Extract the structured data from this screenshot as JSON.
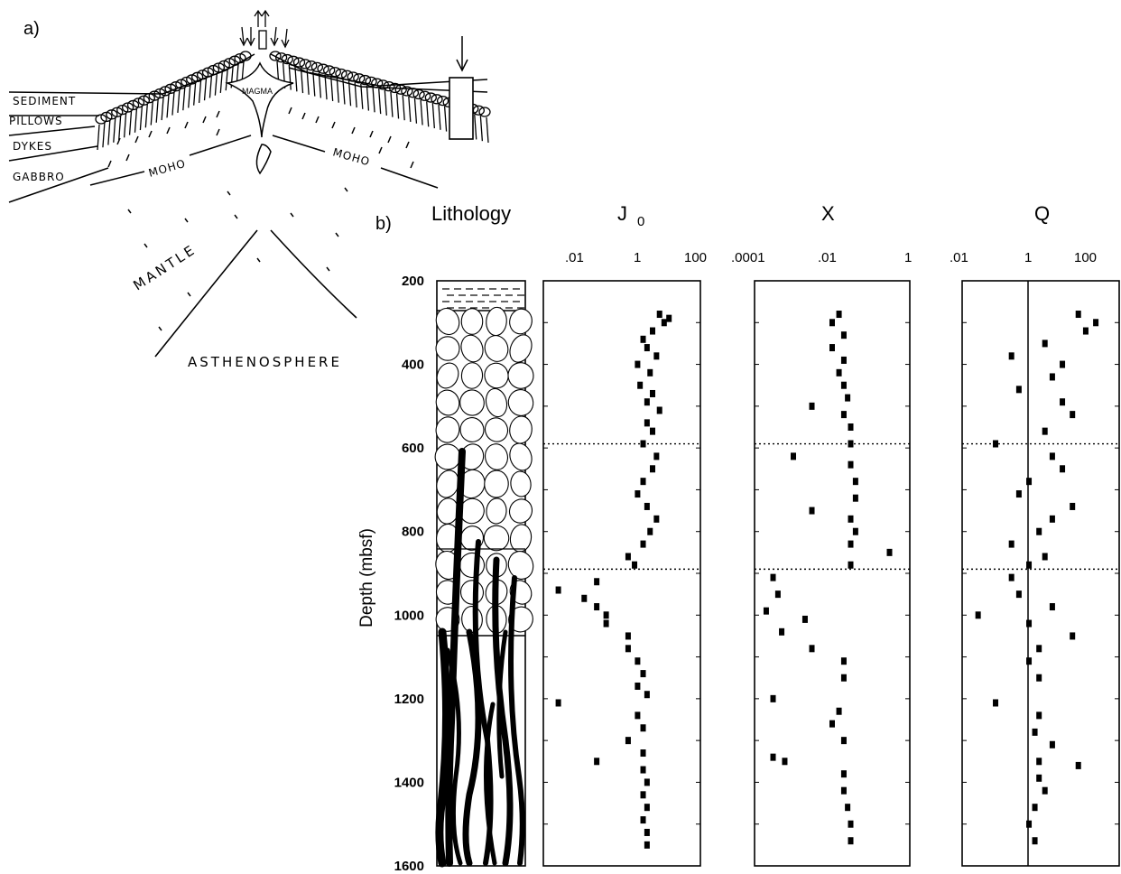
{
  "panel_a": {
    "label": "a)",
    "labels": {
      "sediment": "SEDIMENT",
      "pillows": "PILLOWS",
      "dykes": "DYKES",
      "gabbro": "GABBRO",
      "moho": "MOHO",
      "magma": "MAGMA",
      "mantle": "MANTLE",
      "asthenosphere": "ASTHENOSPHERE"
    }
  },
  "panel_b": {
    "label": "b)",
    "y_axis_label": "Depth (mbsf)",
    "depth_ticks": [
      "200",
      "400",
      "600",
      "800",
      "1000",
      "1200",
      "1400",
      "1600"
    ],
    "columns": {
      "lithology": "Lithology",
      "j0": {
        "title": "J",
        "subscript": "0",
        "ticks": [
          ".01",
          "1",
          "100"
        ]
      },
      "x": {
        "title": "X",
        "ticks": [
          ".0001",
          ".01",
          "1"
        ]
      },
      "q": {
        "title": "Q",
        "ticks": [
          ".01",
          "1",
          "100"
        ]
      }
    },
    "boundaries_depth": [
      590,
      890
    ]
  },
  "chart_data": [
    {
      "type": "scatter",
      "title": "J 0",
      "ylabel": "Depth (mbsf)",
      "xscale": "log",
      "xlim": [
        0.001,
        100
      ],
      "ylim": [
        1600,
        200
      ],
      "grid": false,
      "points": [
        [
          5,
          280
        ],
        [
          10,
          290
        ],
        [
          7,
          300
        ],
        [
          3,
          320
        ],
        [
          1.5,
          340
        ],
        [
          2,
          360
        ],
        [
          4,
          380
        ],
        [
          1,
          400
        ],
        [
          2.5,
          420
        ],
        [
          1.2,
          450
        ],
        [
          3,
          470
        ],
        [
          2,
          490
        ],
        [
          5,
          510
        ],
        [
          2,
          540
        ],
        [
          3,
          560
        ],
        [
          1.5,
          590
        ],
        [
          4,
          620
        ],
        [
          3,
          650
        ],
        [
          1.5,
          680
        ],
        [
          1,
          710
        ],
        [
          2,
          740
        ],
        [
          4,
          770
        ],
        [
          2.5,
          800
        ],
        [
          1.5,
          830
        ],
        [
          0.5,
          860
        ],
        [
          0.8,
          880
        ],
        [
          0.05,
          920
        ],
        [
          0.003,
          940
        ],
        [
          0.02,
          960
        ],
        [
          0.05,
          980
        ],
        [
          0.1,
          1000
        ],
        [
          0.1,
          1020
        ],
        [
          0.5,
          1050
        ],
        [
          0.5,
          1080
        ],
        [
          1,
          1110
        ],
        [
          1.5,
          1140
        ],
        [
          1,
          1170
        ],
        [
          2,
          1190
        ],
        [
          0.003,
          1210
        ],
        [
          1,
          1240
        ],
        [
          1.5,
          1270
        ],
        [
          0.5,
          1300
        ],
        [
          1.5,
          1330
        ],
        [
          0.05,
          1350
        ],
        [
          1.5,
          1370
        ],
        [
          2,
          1400
        ],
        [
          1.5,
          1430
        ],
        [
          2,
          1460
        ],
        [
          1.5,
          1490
        ],
        [
          2,
          1520
        ],
        [
          2,
          1550
        ]
      ]
    },
    {
      "type": "scatter",
      "title": "X",
      "ylabel": "Depth (mbsf)",
      "xscale": "log",
      "xlim": [
        0.0001,
        1
      ],
      "ylim": [
        1600,
        200
      ],
      "grid": false,
      "points": [
        [
          0.015,
          280
        ],
        [
          0.01,
          300
        ],
        [
          0.02,
          330
        ],
        [
          0.01,
          360
        ],
        [
          0.02,
          390
        ],
        [
          0.015,
          420
        ],
        [
          0.02,
          450
        ],
        [
          0.025,
          480
        ],
        [
          0.003,
          500
        ],
        [
          0.02,
          520
        ],
        [
          0.03,
          550
        ],
        [
          0.03,
          590
        ],
        [
          0.001,
          620
        ],
        [
          0.03,
          640
        ],
        [
          0.04,
          680
        ],
        [
          0.04,
          720
        ],
        [
          0.003,
          750
        ],
        [
          0.03,
          770
        ],
        [
          0.04,
          800
        ],
        [
          0.03,
          830
        ],
        [
          0.3,
          850
        ],
        [
          0.03,
          880
        ],
        [
          0.0003,
          910
        ],
        [
          0.0004,
          950
        ],
        [
          0.0002,
          990
        ],
        [
          0.002,
          1010
        ],
        [
          0.0005,
          1040
        ],
        [
          0.003,
          1080
        ],
        [
          0.02,
          1110
        ],
        [
          0.02,
          1150
        ],
        [
          0.0003,
          1200
        ],
        [
          0.015,
          1230
        ],
        [
          0.01,
          1260
        ],
        [
          0.02,
          1300
        ],
        [
          0.0003,
          1340
        ],
        [
          0.0006,
          1350
        ],
        [
          0.02,
          1380
        ],
        [
          0.02,
          1420
        ],
        [
          0.025,
          1460
        ],
        [
          0.03,
          1500
        ],
        [
          0.03,
          1540
        ]
      ]
    },
    {
      "type": "scatter",
      "title": "Q",
      "ylabel": "Depth (mbsf)",
      "xscale": "log",
      "xlim": [
        0.01,
        500
      ],
      "ylim": [
        1600,
        200
      ],
      "grid": false,
      "reference_line_x": 1,
      "points": [
        [
          30,
          280
        ],
        [
          100,
          300
        ],
        [
          50,
          320
        ],
        [
          3,
          350
        ],
        [
          0.3,
          380
        ],
        [
          10,
          400
        ],
        [
          5,
          430
        ],
        [
          0.5,
          460
        ],
        [
          10,
          490
        ],
        [
          20,
          520
        ],
        [
          3,
          560
        ],
        [
          0.1,
          590
        ],
        [
          5,
          620
        ],
        [
          10,
          650
        ],
        [
          1,
          680
        ],
        [
          0.5,
          710
        ],
        [
          20,
          740
        ],
        [
          5,
          770
        ],
        [
          2,
          800
        ],
        [
          0.3,
          830
        ],
        [
          3,
          860
        ],
        [
          1,
          880
        ],
        [
          0.3,
          910
        ],
        [
          0.5,
          950
        ],
        [
          5,
          980
        ],
        [
          0.03,
          1000
        ],
        [
          1,
          1020
        ],
        [
          20,
          1050
        ],
        [
          2,
          1080
        ],
        [
          1,
          1110
        ],
        [
          2,
          1150
        ],
        [
          0.1,
          1210
        ],
        [
          2,
          1240
        ],
        [
          1.5,
          1280
        ],
        [
          5,
          1310
        ],
        [
          2,
          1350
        ],
        [
          30,
          1360
        ],
        [
          2,
          1390
        ],
        [
          3,
          1420
        ],
        [
          1.5,
          1460
        ],
        [
          1,
          1500
        ],
        [
          1.5,
          1540
        ]
      ]
    }
  ]
}
